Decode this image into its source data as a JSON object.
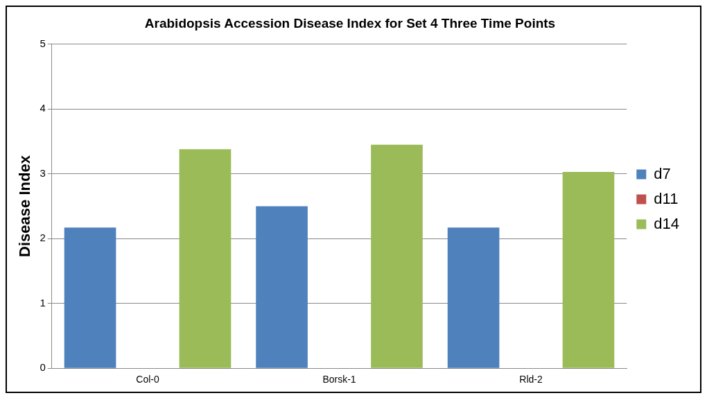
{
  "chart_data": {
    "type": "bar",
    "title": "Arabidopsis Accession Disease Index for Set 4 Three Time Points",
    "ylabel": "Disease Index",
    "categories": [
      "Col-0",
      "Borsk-1",
      "Rld-2"
    ],
    "series": [
      {
        "name": "d7",
        "color": "#4f81bd",
        "values": [
          2.17,
          2.5,
          2.17
        ]
      },
      {
        "name": "d11",
        "color": "#c0504d",
        "values": [
          null,
          null,
          null
        ]
      },
      {
        "name": "d14",
        "color": "#9bbb59",
        "values": [
          3.38,
          3.45,
          3.03
        ]
      }
    ],
    "ylim": [
      0,
      5
    ],
    "yticks": [
      0,
      1,
      2,
      3,
      4,
      5
    ],
    "grid": "y",
    "legend": "right"
  }
}
